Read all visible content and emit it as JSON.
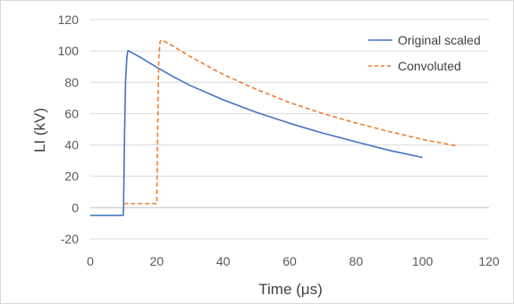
{
  "chart_data": {
    "type": "line",
    "title": "",
    "xlabel": "Time (μs)",
    "ylabel": "LI (kV)",
    "xlim": [
      0,
      120
    ],
    "ylim": [
      -20,
      120
    ],
    "x_ticks": [
      "0",
      "20",
      "40",
      "60",
      "80",
      "100",
      "120"
    ],
    "y_ticks": [
      "-20",
      "0",
      "20",
      "40",
      "60",
      "80",
      "100",
      "120"
    ],
    "grid": "horizontal",
    "legend_position": "top-right",
    "series": [
      {
        "name": "Original scaled",
        "color": "#4472c4",
        "dash": "solid",
        "x": [
          0,
          9.9,
          10,
          10.3,
          10.6,
          11,
          11.3,
          11.6,
          12,
          15,
          20,
          25,
          30,
          40,
          50,
          60,
          70,
          80,
          90,
          100
        ],
        "y": [
          -5,
          -5,
          0,
          45,
          80,
          96,
          100,
          100,
          99.5,
          96,
          89.6,
          83.5,
          78,
          68.8,
          60.8,
          53.8,
          47.5,
          42,
          36.5,
          32
        ]
      },
      {
        "name": "Convoluted",
        "color": "#ed7d31",
        "dash": "dashed",
        "x": [
          10,
          20,
          20.3,
          20.6,
          21,
          21.5,
          22,
          25,
          30,
          40,
          50,
          60,
          70,
          80,
          90,
          100,
          110
        ],
        "y": [
          2.5,
          2.5,
          50,
          95,
          106,
          107,
          106.5,
          103,
          96.5,
          85,
          75.5,
          67,
          60,
          54,
          48.5,
          43.5,
          39.5
        ]
      }
    ]
  }
}
